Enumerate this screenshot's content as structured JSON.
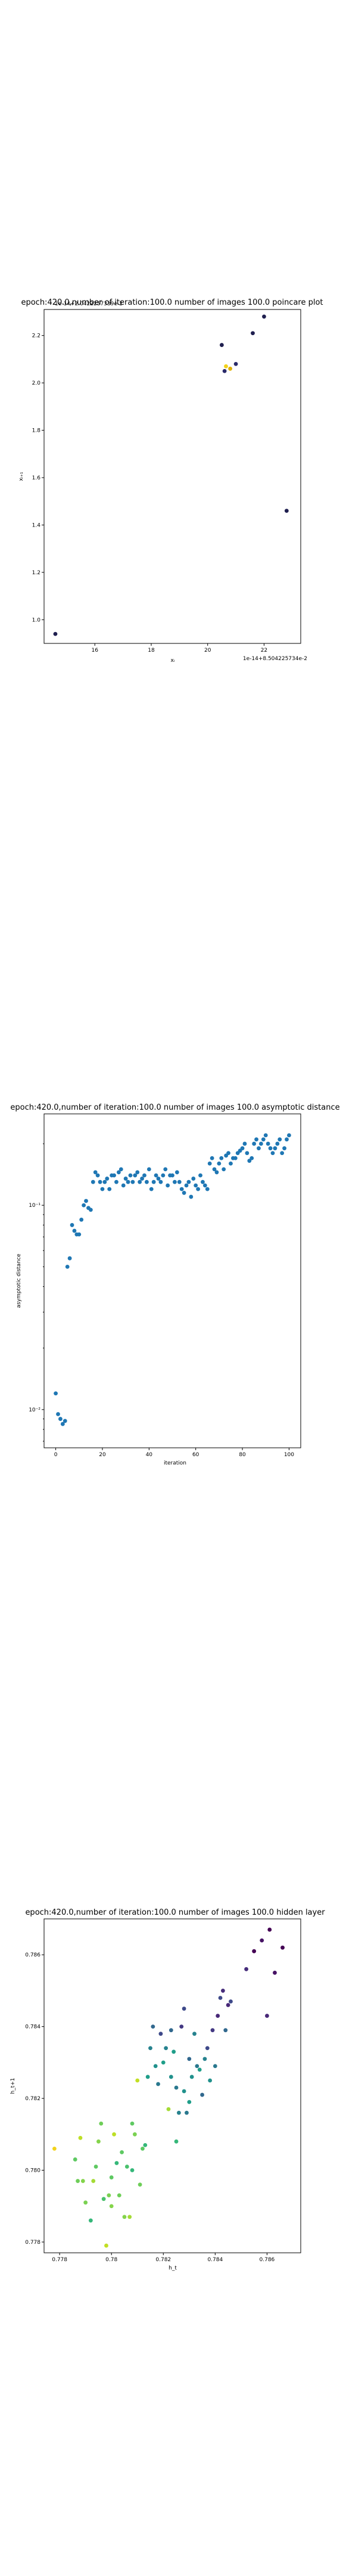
{
  "chart_data": [
    {
      "type": "scatter",
      "title": "epoch:420.0,number of iteration:100.0  number of images 100.0 poincare plot",
      "overlay_text": "1e-14+2.0422257339e-2",
      "xlabel": "xᵢ",
      "ylabel": "xᵢ₊₁",
      "x_offset_text": "1e-14+8.504225734e-2",
      "xlim": [
        14.2,
        23.3
      ],
      "ylim": [
        0.9,
        2.31
      ],
      "xticks": [
        16,
        18,
        20,
        22
      ],
      "yticks": [
        1.0,
        1.2,
        1.4,
        1.6,
        1.8,
        2.0,
        2.2
      ],
      "grid": false,
      "points": [
        {
          "x": 14.6,
          "y": 0.94,
          "c": "#1f1f4f"
        },
        {
          "x": 20.5,
          "y": 2.16,
          "c": "#1f1f4f"
        },
        {
          "x": 20.6,
          "y": 2.05,
          "c": "#2a2a6a"
        },
        {
          "x": 20.65,
          "y": 2.07,
          "c": "#f2d21b"
        },
        {
          "x": 20.8,
          "y": 2.06,
          "c": "#e0b000"
        },
        {
          "x": 21.0,
          "y": 2.08,
          "c": "#2a2a6a"
        },
        {
          "x": 21.6,
          "y": 2.21,
          "c": "#1f1f4f"
        },
        {
          "x": 22.0,
          "y": 2.28,
          "c": "#1f1f4f"
        },
        {
          "x": 22.8,
          "y": 1.46,
          "c": "#1f1f4f"
        }
      ]
    },
    {
      "type": "scatter",
      "title": "epoch:420.0,number of iteration:100.0  number of images 100.0 asymptotic distance",
      "xlabel": "iteration",
      "ylabel": "asymptotic distance",
      "xlim": [
        -5,
        105
      ],
      "ylog": true,
      "ylim": [
        0.0065,
        0.28
      ],
      "xticks": [
        0,
        20,
        40,
        60,
        80,
        100
      ],
      "yticks": [
        0.01,
        0.1
      ],
      "ytick_labels": [
        "10⁻²",
        "10⁻¹"
      ],
      "color": "#1f77b4",
      "grid": false,
      "y": [
        0.012,
        0.0095,
        0.009,
        0.0085,
        0.0088,
        0.05,
        0.055,
        0.08,
        0.075,
        0.072,
        0.072,
        0.085,
        0.1,
        0.105,
        0.097,
        0.095,
        0.13,
        0.145,
        0.14,
        0.13,
        0.12,
        0.13,
        0.135,
        0.12,
        0.14,
        0.14,
        0.13,
        0.145,
        0.15,
        0.125,
        0.135,
        0.13,
        0.14,
        0.13,
        0.14,
        0.145,
        0.13,
        0.135,
        0.14,
        0.13,
        0.15,
        0.12,
        0.13,
        0.14,
        0.135,
        0.13,
        0.14,
        0.15,
        0.125,
        0.14,
        0.14,
        0.13,
        0.145,
        0.13,
        0.12,
        0.115,
        0.125,
        0.13,
        0.11,
        0.135,
        0.125,
        0.12,
        0.14,
        0.13,
        0.125,
        0.12,
        0.16,
        0.17,
        0.15,
        0.145,
        0.16,
        0.17,
        0.15,
        0.175,
        0.18,
        0.16,
        0.17,
        0.17,
        0.18,
        0.185,
        0.19,
        0.2,
        0.18,
        0.165,
        0.17,
        0.2,
        0.21,
        0.19,
        0.2,
        0.21,
        0.22,
        0.2,
        0.19,
        0.18,
        0.19,
        0.2,
        0.21,
        0.18,
        0.19,
        0.21,
        0.22
      ]
    },
    {
      "type": "scatter",
      "title": "epoch:420.0,number of iteration:100.0  number of images 100.0 hidden layer",
      "xlabel": "h_t",
      "ylabel": "h_t+1",
      "xlim": [
        0.7774,
        0.7873
      ],
      "ylim": [
        0.7777,
        0.787
      ],
      "xticks": [
        0.778,
        0.78,
        0.782,
        0.784,
        0.786
      ],
      "yticks": [
        0.778,
        0.78,
        0.782,
        0.784,
        0.786
      ],
      "ytick_labels": [
        "0.778",
        "0.780",
        "0.782",
        "0.784",
        "0.786"
      ],
      "grid": false,
      "points": [
        {
          "x": 0.7778,
          "y": 0.7806,
          "c": "#f2d21b"
        },
        {
          "x": 0.7788,
          "y": 0.7809,
          "c": "#bddf26"
        },
        {
          "x": 0.7786,
          "y": 0.7803,
          "c": "#5ec962"
        },
        {
          "x": 0.7787,
          "y": 0.7797,
          "c": "#6ece58"
        },
        {
          "x": 0.7789,
          "y": 0.7797,
          "c": "#84d44b"
        },
        {
          "x": 0.779,
          "y": 0.7791,
          "c": "#7ad151"
        },
        {
          "x": 0.7792,
          "y": 0.7786,
          "c": "#35b779"
        },
        {
          "x": 0.7793,
          "y": 0.7797,
          "c": "#a5db36"
        },
        {
          "x": 0.7794,
          "y": 0.7801,
          "c": "#5ec962"
        },
        {
          "x": 0.7795,
          "y": 0.7808,
          "c": "#84d44b"
        },
        {
          "x": 0.7796,
          "y": 0.7813,
          "c": "#6ece58"
        },
        {
          "x": 0.7797,
          "y": 0.7792,
          "c": "#4ac16d"
        },
        {
          "x": 0.7798,
          "y": 0.7779,
          "c": "#c2df23"
        },
        {
          "x": 0.7799,
          "y": 0.7793,
          "c": "#7ad151"
        },
        {
          "x": 0.78,
          "y": 0.779,
          "c": "#84d44b"
        },
        {
          "x": 0.78,
          "y": 0.7798,
          "c": "#5ec962"
        },
        {
          "x": 0.7801,
          "y": 0.781,
          "c": "#bddf26"
        },
        {
          "x": 0.7802,
          "y": 0.7802,
          "c": "#35b779"
        },
        {
          "x": 0.7803,
          "y": 0.7793,
          "c": "#6ece58"
        },
        {
          "x": 0.7804,
          "y": 0.7805,
          "c": "#5ec962"
        },
        {
          "x": 0.7805,
          "y": 0.7787,
          "c": "#84d44b"
        },
        {
          "x": 0.7806,
          "y": 0.7801,
          "c": "#4ac16d"
        },
        {
          "x": 0.7807,
          "y": 0.7787,
          "c": "#a5db36"
        },
        {
          "x": 0.7808,
          "y": 0.78,
          "c": "#35b779"
        },
        {
          "x": 0.7808,
          "y": 0.7813,
          "c": "#5ec962"
        },
        {
          "x": 0.7809,
          "y": 0.781,
          "c": "#7ad151"
        },
        {
          "x": 0.781,
          "y": 0.7825,
          "c": "#c2df23"
        },
        {
          "x": 0.7811,
          "y": 0.7796,
          "c": "#6ece58"
        },
        {
          "x": 0.7812,
          "y": 0.7806,
          "c": "#5ec962"
        },
        {
          "x": 0.7813,
          "y": 0.7807,
          "c": "#35b779"
        },
        {
          "x": 0.7814,
          "y": 0.7826,
          "c": "#1f9e89"
        },
        {
          "x": 0.7815,
          "y": 0.7834,
          "c": "#26828e"
        },
        {
          "x": 0.7816,
          "y": 0.784,
          "c": "#31688e"
        },
        {
          "x": 0.7817,
          "y": 0.7829,
          "c": "#21918c"
        },
        {
          "x": 0.7818,
          "y": 0.7824,
          "c": "#2a788e"
        },
        {
          "x": 0.7819,
          "y": 0.7838,
          "c": "#3e4989"
        },
        {
          "x": 0.782,
          "y": 0.783,
          "c": "#1f9e89"
        },
        {
          "x": 0.7821,
          "y": 0.7834,
          "c": "#26828e"
        },
        {
          "x": 0.7822,
          "y": 0.7817,
          "c": "#a5db36"
        },
        {
          "x": 0.7823,
          "y": 0.7839,
          "c": "#31688e"
        },
        {
          "x": 0.7823,
          "y": 0.7826,
          "c": "#21918c"
        },
        {
          "x": 0.7824,
          "y": 0.7833,
          "c": "#1f9e89"
        },
        {
          "x": 0.7825,
          "y": 0.7808,
          "c": "#35b779"
        },
        {
          "x": 0.7825,
          "y": 0.7823,
          "c": "#2a788e"
        },
        {
          "x": 0.7826,
          "y": 0.7816,
          "c": "#26828e"
        },
        {
          "x": 0.7827,
          "y": 0.784,
          "c": "#443983"
        },
        {
          "x": 0.7828,
          "y": 0.7822,
          "c": "#21918c"
        },
        {
          "x": 0.7828,
          "y": 0.7845,
          "c": "#3e4989"
        },
        {
          "x": 0.7829,
          "y": 0.7816,
          "c": "#2a788e"
        },
        {
          "x": 0.783,
          "y": 0.7819,
          "c": "#1f9e89"
        },
        {
          "x": 0.783,
          "y": 0.7831,
          "c": "#31688e"
        },
        {
          "x": 0.7831,
          "y": 0.7826,
          "c": "#21918c"
        },
        {
          "x": 0.7832,
          "y": 0.7838,
          "c": "#26828e"
        },
        {
          "x": 0.7833,
          "y": 0.7829,
          "c": "#2a788e"
        },
        {
          "x": 0.7834,
          "y": 0.7828,
          "c": "#1f9e89"
        },
        {
          "x": 0.7835,
          "y": 0.7821,
          "c": "#31688e"
        },
        {
          "x": 0.7836,
          "y": 0.7831,
          "c": "#26828e"
        },
        {
          "x": 0.7837,
          "y": 0.7834,
          "c": "#3e4989"
        },
        {
          "x": 0.7838,
          "y": 0.7825,
          "c": "#21918c"
        },
        {
          "x": 0.7839,
          "y": 0.7839,
          "c": "#443983"
        },
        {
          "x": 0.784,
          "y": 0.7829,
          "c": "#2a788e"
        },
        {
          "x": 0.7841,
          "y": 0.7843,
          "c": "#482878"
        },
        {
          "x": 0.7842,
          "y": 0.7848,
          "c": "#3e4989"
        },
        {
          "x": 0.7843,
          "y": 0.785,
          "c": "#472d7b"
        },
        {
          "x": 0.7844,
          "y": 0.7839,
          "c": "#31688e"
        },
        {
          "x": 0.7845,
          "y": 0.7846,
          "c": "#482878"
        },
        {
          "x": 0.7846,
          "y": 0.7847,
          "c": "#3e4989"
        },
        {
          "x": 0.7852,
          "y": 0.7856,
          "c": "#472d7b"
        },
        {
          "x": 0.7855,
          "y": 0.7861,
          "c": "#440154"
        },
        {
          "x": 0.7858,
          "y": 0.7864,
          "c": "#471365"
        },
        {
          "x": 0.786,
          "y": 0.7843,
          "c": "#482878"
        },
        {
          "x": 0.7861,
          "y": 0.7867,
          "c": "#440154"
        },
        {
          "x": 0.7863,
          "y": 0.7855,
          "c": "#471365"
        },
        {
          "x": 0.7866,
          "y": 0.7862,
          "c": "#440154"
        }
      ]
    }
  ]
}
